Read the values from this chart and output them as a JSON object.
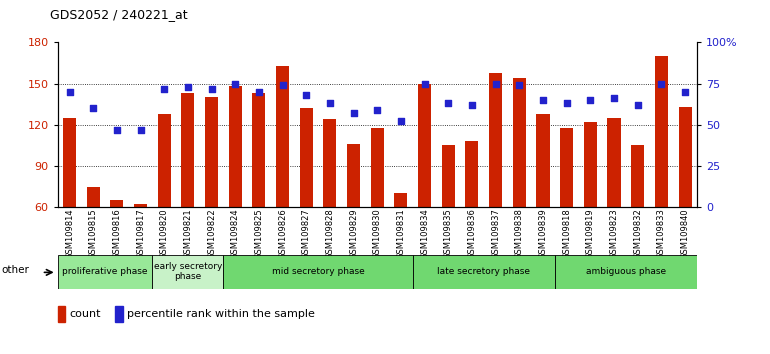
{
  "title": "GDS2052 / 240221_at",
  "samples": [
    "GSM109814",
    "GSM109815",
    "GSM109816",
    "GSM109817",
    "GSM109820",
    "GSM109821",
    "GSM109822",
    "GSM109824",
    "GSM109825",
    "GSM109826",
    "GSM109827",
    "GSM109828",
    "GSM109829",
    "GSM109830",
    "GSM109831",
    "GSM109834",
    "GSM109835",
    "GSM109836",
    "GSM109837",
    "GSM109838",
    "GSM109839",
    "GSM109818",
    "GSM109819",
    "GSM109823",
    "GSM109832",
    "GSM109833",
    "GSM109840"
  ],
  "counts": [
    125,
    75,
    65,
    62,
    128,
    143,
    140,
    148,
    143,
    163,
    132,
    124,
    106,
    118,
    70,
    150,
    105,
    108,
    158,
    154,
    128,
    118,
    122,
    125,
    105,
    170,
    133
  ],
  "percentiles": [
    70,
    60,
    47,
    47,
    72,
    73,
    72,
    75,
    70,
    74,
    68,
    63,
    57,
    59,
    52,
    75,
    63,
    62,
    75,
    74,
    65,
    63,
    65,
    66,
    62,
    75,
    70
  ],
  "phase_groups": [
    {
      "label": "proliferative phase",
      "start": 0,
      "end": 4,
      "color": "#98e898"
    },
    {
      "label": "early secretory\nphase",
      "start": 4,
      "end": 7,
      "color": "#c8f2c8"
    },
    {
      "label": "mid secretory phase",
      "start": 7,
      "end": 15,
      "color": "#70d870"
    },
    {
      "label": "late secretory phase",
      "start": 15,
      "end": 21,
      "color": "#70d870"
    },
    {
      "label": "ambiguous phase",
      "start": 21,
      "end": 27,
      "color": "#70d870"
    }
  ],
  "ylim_left": [
    60,
    180
  ],
  "ylim_right": [
    0,
    100
  ],
  "yticks_left": [
    60,
    90,
    120,
    150,
    180
  ],
  "yticks_right": [
    0,
    25,
    50,
    75,
    100
  ],
  "yticklabels_right": [
    "0",
    "25",
    "50",
    "75",
    "100%"
  ],
  "bar_color": "#cc2200",
  "dot_color": "#2222cc",
  "bar_bottom": 60,
  "legend_count_label": "count",
  "legend_percentile_label": "percentile rank within the sample",
  "other_label": "other"
}
